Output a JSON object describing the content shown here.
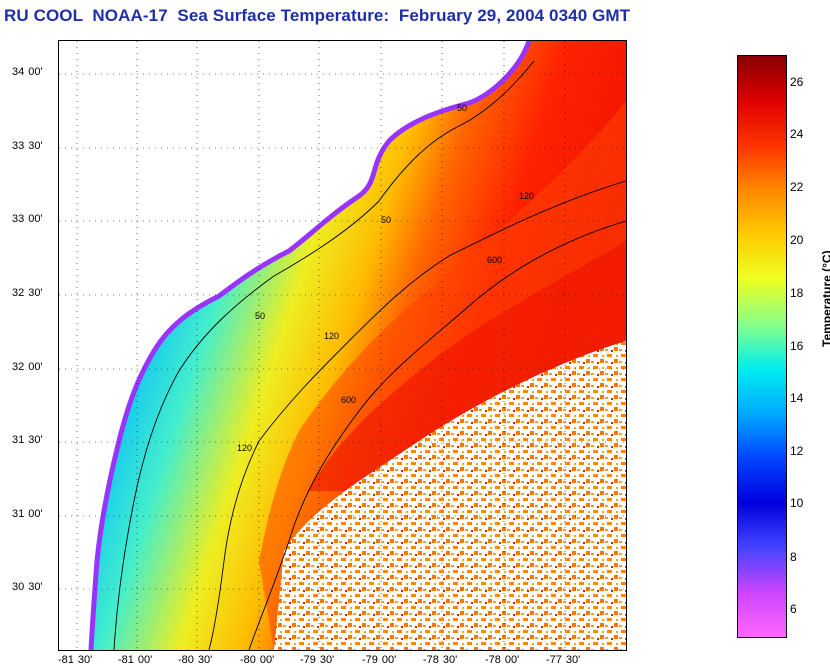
{
  "title": "RU COOL  NOAA-17  Sea Surface Temperature:  February 29, 2004 0340 GMT",
  "map": {
    "lat_ticks": [
      {
        "deg": "34",
        "min": "00'"
      },
      {
        "deg": "33",
        "min": "30'"
      },
      {
        "deg": "33",
        "min": "00'"
      },
      {
        "deg": "32",
        "min": "30'"
      },
      {
        "deg": "32",
        "min": "00'"
      },
      {
        "deg": "31",
        "min": "30'"
      },
      {
        "deg": "31",
        "min": "00'"
      },
      {
        "deg": "30",
        "min": "30'"
      }
    ],
    "lon_ticks": [
      {
        "deg": "-81",
        "min": "30'"
      },
      {
        "deg": "-81",
        "min": "00'"
      },
      {
        "deg": "-80",
        "min": "30'"
      },
      {
        "deg": "-80",
        "min": "00'"
      },
      {
        "deg": "-79",
        "min": "30'"
      },
      {
        "deg": "-79",
        "min": "00'"
      },
      {
        "deg": "-78",
        "min": "30'"
      },
      {
        "deg": "-78",
        "min": "00'"
      },
      {
        "deg": "-77",
        "min": "30'"
      }
    ],
    "isobath_labels": [
      "50",
      "120",
      "600"
    ]
  },
  "colorbar": {
    "label": "Temperature (°C)",
    "ticks": [
      "26",
      "24",
      "22",
      "20",
      "18",
      "16",
      "14",
      "12",
      "10",
      "8",
      "6"
    ],
    "colors": [
      "#ff66ff",
      "#cc44ff",
      "#4444ff",
      "#0000dd",
      "#0044ff",
      "#00aaff",
      "#00eeee",
      "#88ff88",
      "#eeff22",
      "#ffcc00",
      "#ff8800",
      "#ff3300",
      "#dd0000",
      "#880000"
    ]
  }
}
